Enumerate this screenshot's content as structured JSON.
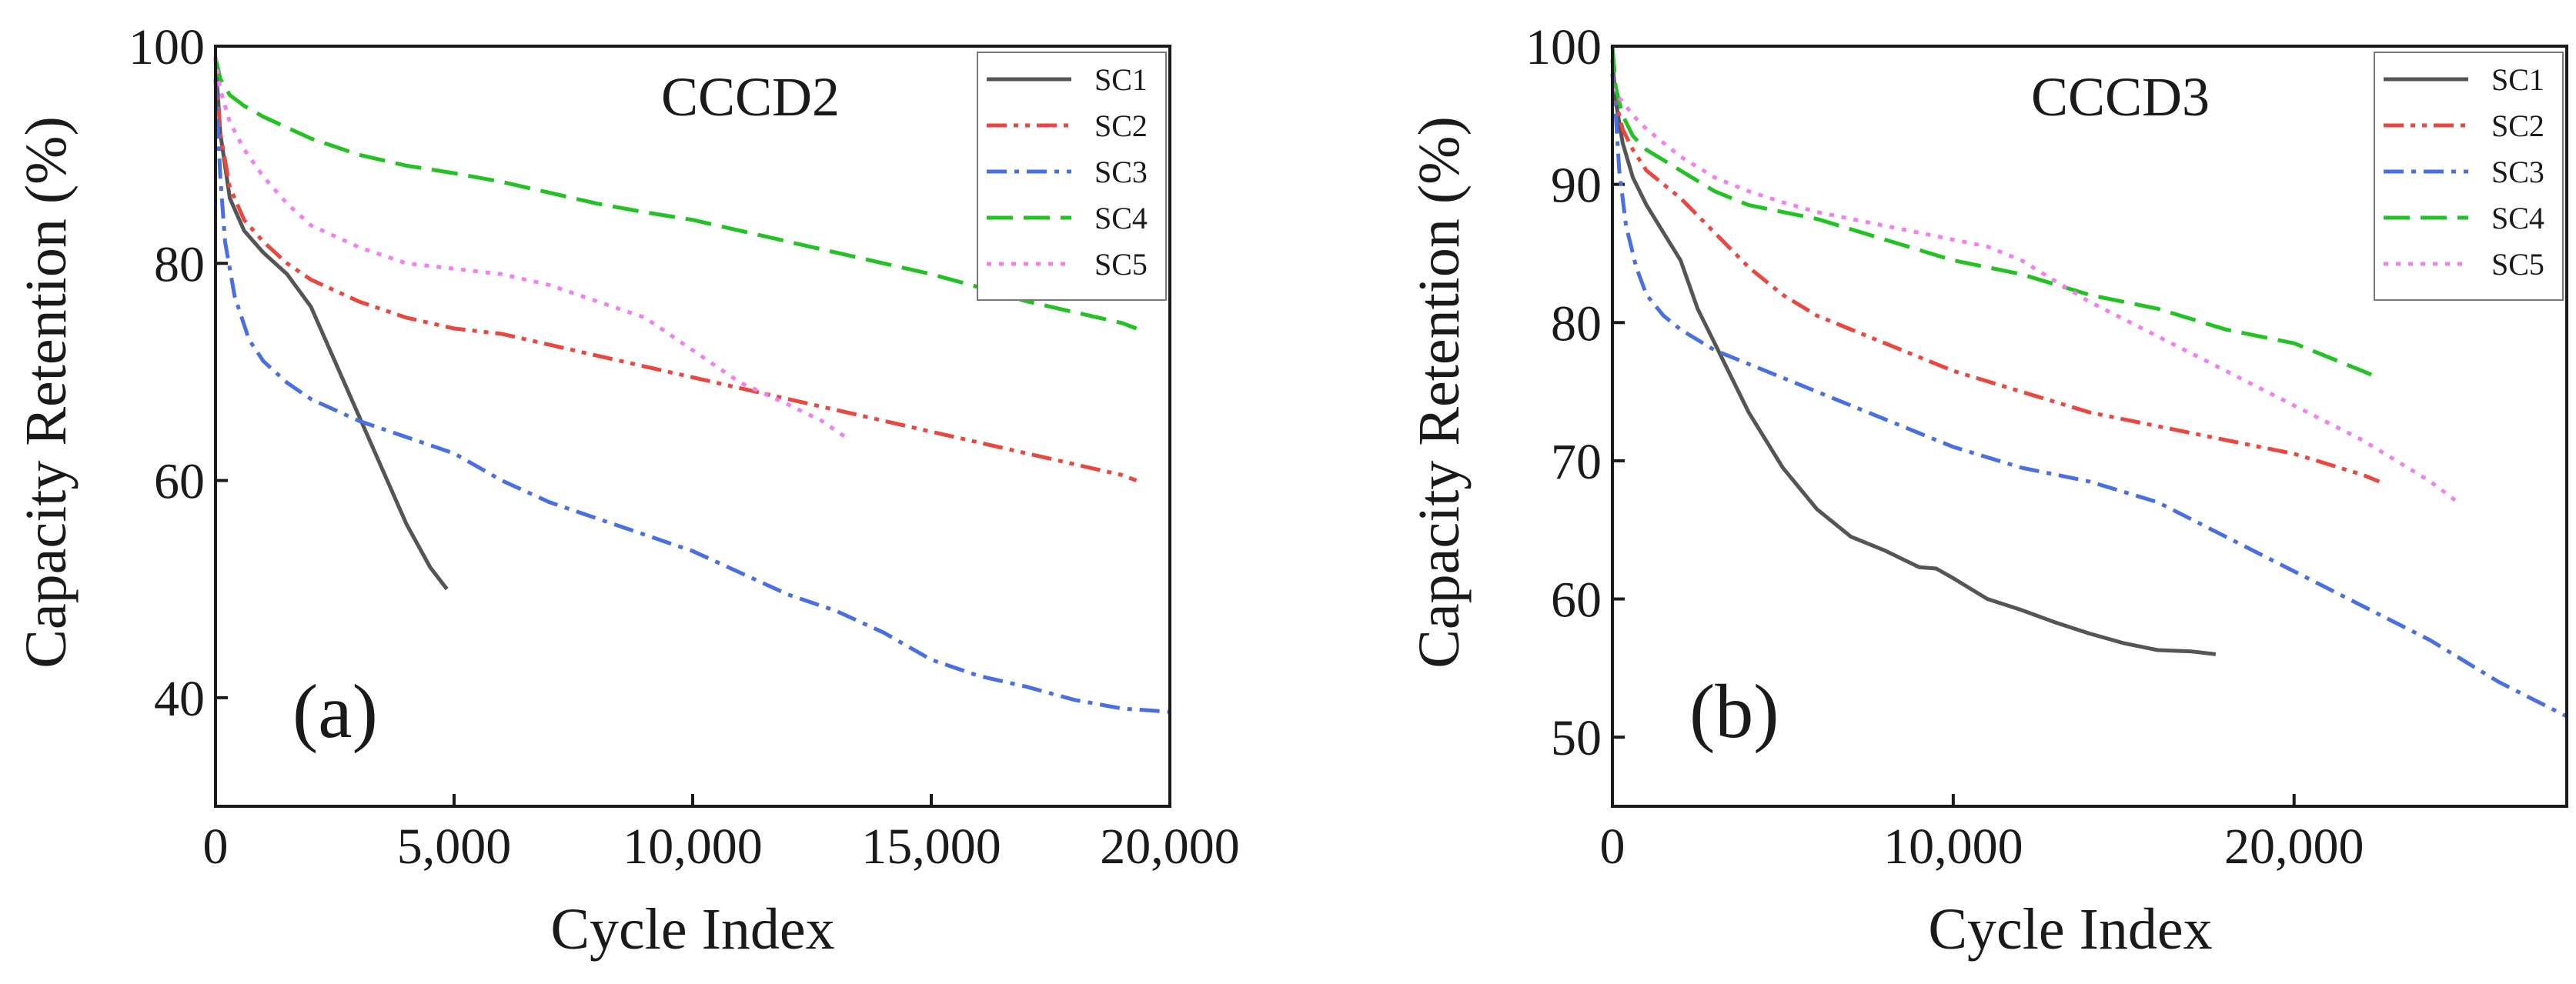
{
  "chart_data": [
    {
      "type": "line",
      "title": "CCCD2",
      "panel_label": "(a)",
      "xlabel": "Cycle Index",
      "ylabel": "Capacity Retention (%)",
      "xlim": [
        0,
        20000
      ],
      "ylim": [
        30,
        100
      ],
      "x_ticks": [
        0,
        5000,
        10000,
        15000,
        20000
      ],
      "x_tick_labels": [
        "0",
        "5,000",
        "10,000",
        "15,000",
        "20,000"
      ],
      "y_ticks": [
        40,
        60,
        80,
        100
      ],
      "y_tick_labels": [
        "40",
        "60",
        "80",
        "100"
      ],
      "grid": false,
      "legend": "top-right",
      "series": [
        {
          "name": "SC1",
          "color": "#555555",
          "dash": "solid",
          "x": [
            0,
            100,
            300,
            600,
            1000,
            1500,
            2000,
            2500,
            3000,
            3500,
            4000,
            4500,
            4850
          ],
          "y": [
            99,
            92,
            86,
            83,
            81,
            79,
            76,
            71,
            66,
            61,
            56,
            52,
            50
          ]
        },
        {
          "name": "SC2",
          "color": "#e8483f",
          "dash": "dashdotdot",
          "x": [
            0,
            100,
            300,
            600,
            1000,
            1500,
            2000,
            3000,
            4000,
            5000,
            6000,
            7000,
            8000,
            9000,
            10000,
            11000,
            12000,
            13000,
            14000,
            15000,
            16000,
            17000,
            18000,
            19000,
            19300
          ],
          "y": [
            99,
            92,
            87,
            84,
            82,
            80,
            78.5,
            76.5,
            75,
            74,
            73.5,
            72.5,
            71.5,
            70.5,
            69.5,
            68.5,
            67.5,
            66.5,
            65.5,
            64.5,
            63.5,
            62.5,
            61.5,
            60.5,
            60
          ]
        },
        {
          "name": "SC3",
          "color": "#4a6fe3",
          "dash": "dashdot",
          "x": [
            0,
            100,
            200,
            400,
            700,
            1000,
            1500,
            2000,
            3000,
            4000,
            5000,
            6000,
            7000,
            8000,
            9000,
            10000,
            11000,
            12000,
            13000,
            14000,
            15000,
            16000,
            17000,
            18000,
            19000,
            20000
          ],
          "y": [
            97,
            88,
            82,
            77,
            73,
            71,
            69,
            67.5,
            65.5,
            64,
            62.5,
            60,
            58,
            56.5,
            55,
            53.5,
            51.5,
            49.5,
            48,
            46,
            43.5,
            42,
            41,
            39.8,
            39,
            38.7
          ]
        },
        {
          "name": "SC4",
          "color": "#22c222",
          "dash": "dashed",
          "x": [
            0,
            100,
            300,
            600,
            1000,
            2000,
            3000,
            4000,
            5000,
            6000,
            7000,
            8000,
            9000,
            10000,
            11000,
            12000,
            13000,
            14000,
            15000,
            16000,
            17000,
            18000,
            19000,
            19300
          ],
          "y": [
            99,
            97,
            95.5,
            94.5,
            93.5,
            91.5,
            90,
            89,
            88.3,
            87.5,
            86.5,
            85.5,
            84.7,
            84,
            83,
            82,
            81,
            80,
            79,
            77.8,
            76.5,
            75.5,
            74.5,
            74
          ]
        },
        {
          "name": "SC5",
          "color": "#f27ff0",
          "dash": "dotted",
          "x": [
            0,
            100,
            300,
            600,
            1000,
            1500,
            2000,
            3000,
            4000,
            5000,
            6000,
            7000,
            8000,
            9000,
            10000,
            11000,
            12000,
            12700,
            13200
          ],
          "y": [
            99,
            96,
            93,
            90.5,
            88,
            85.5,
            83.5,
            81.5,
            80,
            79.5,
            79,
            78,
            76.5,
            75,
            72,
            69,
            67,
            65.5,
            64
          ]
        }
      ]
    },
    {
      "type": "line",
      "title": "CCCD3",
      "panel_label": "(b)",
      "xlabel": "Cycle Index",
      "ylabel": "Capacity Retention (%)",
      "xlim": [
        0,
        28000
      ],
      "ylim": [
        45,
        100
      ],
      "x_ticks": [
        0,
        10000,
        20000
      ],
      "x_tick_labels": [
        "0",
        "10,000",
        "20,000"
      ],
      "y_ticks": [
        50,
        60,
        70,
        80,
        90,
        100
      ],
      "y_tick_labels": [
        "50",
        "60",
        "70",
        "80",
        "90",
        "100"
      ],
      "grid": false,
      "legend": "top-right",
      "series": [
        {
          "name": "SC1",
          "color": "#555555",
          "dash": "solid",
          "x": [
            0,
            100,
            300,
            600,
            1000,
            1500,
            2000,
            2500,
            3000,
            3500,
            4000,
            5000,
            6000,
            7000,
            8000,
            9000,
            9500,
            10000,
            11000,
            12000,
            13000,
            14000,
            15000,
            16000,
            17000,
            17700
          ],
          "y": [
            99,
            96,
            93,
            90.5,
            88.5,
            86.5,
            84.5,
            81,
            78.5,
            76,
            73.5,
            69.5,
            66.5,
            64.5,
            63.5,
            62.3,
            62.2,
            61.5,
            60,
            59.2,
            58.3,
            57.5,
            56.8,
            56.3,
            56.2,
            56
          ]
        },
        {
          "name": "SC2",
          "color": "#e8483f",
          "dash": "dashdotdot",
          "x": [
            0,
            100,
            300,
            600,
            1000,
            2000,
            3000,
            4000,
            5000,
            6000,
            8000,
            10000,
            12000,
            14000,
            16000,
            18000,
            20000,
            22000,
            22500
          ],
          "y": [
            98,
            96,
            94,
            92.5,
            91,
            89,
            86.5,
            84,
            82,
            80.5,
            78.5,
            76.5,
            75,
            73.5,
            72.5,
            71.5,
            70.5,
            69,
            68.5
          ]
        },
        {
          "name": "SC3",
          "color": "#4a6fe3",
          "dash": "dashdot",
          "x": [
            0,
            100,
            200,
            400,
            700,
            1000,
            1500,
            2000,
            3000,
            4000,
            5000,
            6000,
            7000,
            8000,
            9000,
            10000,
            12000,
            14000,
            16000,
            18000,
            20000,
            22000,
            24000,
            26000,
            28000
          ],
          "y": [
            98,
            95,
            91,
            87,
            84,
            82,
            80.5,
            79.5,
            78,
            77,
            76,
            75,
            74,
            73,
            72,
            71,
            69.5,
            68.5,
            67,
            64.5,
            62,
            59.5,
            57,
            54,
            51.5
          ]
        },
        {
          "name": "SC4",
          "color": "#22c222",
          "dash": "dashed",
          "x": [
            0,
            100,
            300,
            600,
            1000,
            2000,
            3000,
            4000,
            5000,
            6000,
            8000,
            10000,
            12000,
            14000,
            16000,
            18000,
            20000,
            22000,
            22500
          ],
          "y": [
            100,
            97,
            95,
            93.5,
            92.5,
            91,
            89.5,
            88.5,
            88,
            87.5,
            86,
            84.5,
            83.5,
            82,
            81,
            79.5,
            78.5,
            76.5,
            76
          ]
        },
        {
          "name": "SC5",
          "color": "#f27ff0",
          "dash": "dotted",
          "x": [
            0,
            100,
            300,
            600,
            1000,
            2000,
            3000,
            4000,
            5000,
            6000,
            8000,
            10000,
            11000,
            12000,
            14000,
            16000,
            18000,
            20000,
            22000,
            24000,
            24800
          ],
          "y": [
            97,
            96.5,
            96,
            95,
            94,
            92,
            90.5,
            89.5,
            88.7,
            88,
            87,
            86,
            85.5,
            84.5,
            81.5,
            79,
            76.5,
            74,
            71.5,
            68.5,
            67
          ]
        }
      ]
    }
  ]
}
